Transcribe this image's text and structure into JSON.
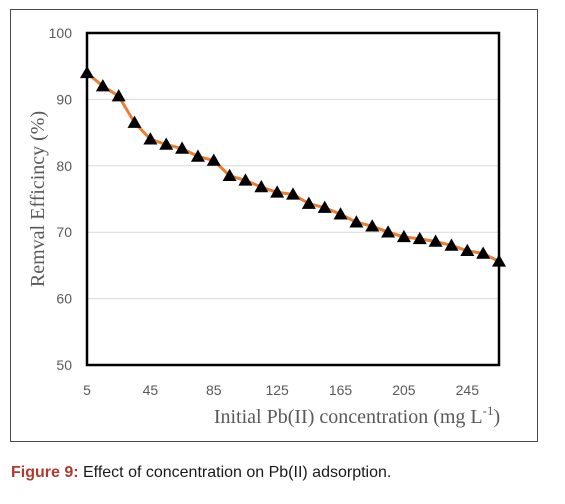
{
  "chart_data": {
    "type": "line",
    "title": "",
    "xlabel": "Initial Pb(II) concentration (mg L",
    "xlabel_superscript": "-1",
    "xlabel_suffix": ")",
    "ylabel": "Remval Efficincy (%)",
    "xlim": [
      5,
      265
    ],
    "ylim": [
      50,
      100
    ],
    "x_ticks": [
      5,
      45,
      85,
      125,
      165,
      205,
      245
    ],
    "y_ticks": [
      50,
      60,
      70,
      80,
      90,
      100
    ],
    "grid": "horizontal",
    "legend": "none",
    "line_color": "#ed7d31",
    "marker_color": "#000000",
    "marker": "triangle",
    "x": [
      5,
      15,
      25,
      35,
      45,
      55,
      65,
      75,
      85,
      95,
      105,
      115,
      125,
      135,
      145,
      155,
      165,
      175,
      185,
      195,
      205,
      215,
      225,
      235,
      245,
      255,
      265
    ],
    "values": [
      94.0,
      92.0,
      90.5,
      86.5,
      84.0,
      83.2,
      82.6,
      81.4,
      80.8,
      78.5,
      77.8,
      76.8,
      76.0,
      75.7,
      74.3,
      73.7,
      72.7,
      71.5,
      70.9,
      70.0,
      69.3,
      69.0,
      68.6,
      68.0,
      67.2,
      66.8,
      65.6
    ]
  },
  "caption": {
    "label": "Figure 9:",
    "text": " Effect of concentration on Pb(II) adsorption."
  }
}
